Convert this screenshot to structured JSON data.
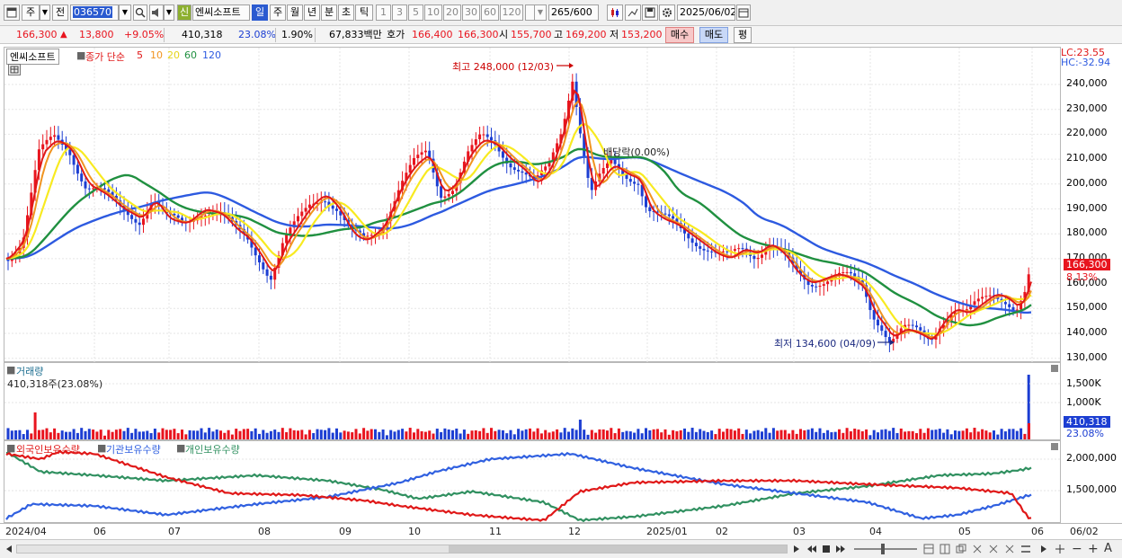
{
  "toolbar": {
    "period_day": "주",
    "prev_label": "전",
    "code": "036570",
    "new_badge": "신",
    "stock_name": "엔씨소프트",
    "periods": [
      "일",
      "주",
      "월",
      "년",
      "분",
      "초",
      "틱"
    ],
    "numbers": [
      "1",
      "3",
      "5",
      "10",
      "20",
      "30",
      "60",
      "120"
    ],
    "count": "265",
    "count_total": "/600",
    "date": "2025/06/02"
  },
  "quote": {
    "price": "166,300",
    "change": "13,800",
    "change_pct": "+9.05%",
    "volume": "410,318",
    "vol_ratio": "23.08%",
    "turnover_pct": "1.90%",
    "amount": "67,833백만",
    "bid_label": "호가",
    "bid1": "166,400",
    "bid2": "166,300",
    "open_label": "시",
    "open": "155,700",
    "high_label": "고",
    "high": "169,200",
    "low_label": "저",
    "low": "153,200",
    "buy": "매수",
    "sell": "매도",
    "eval": "평"
  },
  "price_panel": {
    "name": "엔씨소프트",
    "ma_label": "종가 단순",
    "ma_periods": [
      "5",
      "10",
      "20",
      "60",
      "120"
    ],
    "lc": "LC:23.55",
    "hc": "HC:-32.94",
    "current": "166,300",
    "current_pct": "8.13%",
    "high_note": "최고 248,000 (12/03)",
    "low_note": "최저 134,600 (04/09)",
    "dividend_note": "배당락(0.00%)",
    "y_ticks": [
      "240,000",
      "230,000",
      "220,000",
      "210,000",
      "200,000",
      "190,000",
      "180,000",
      "170,000",
      "160,000",
      "150,000",
      "140,000",
      "130,000"
    ]
  },
  "volume_panel": {
    "title": "거래량",
    "value": "410,318주(23.08%)",
    "y_ticks": [
      "1,500K",
      "1,000K"
    ],
    "current": "410,318",
    "current_pct": "23.08%"
  },
  "holdings_panel": {
    "legend": [
      "외국인보유수량",
      "기관보유수량",
      "개인보유수량"
    ],
    "y_ticks": [
      "2,000,000",
      "1,500,000"
    ]
  },
  "x_labels": [
    "2024/04",
    "06",
    "07",
    "08",
    "09",
    "10",
    "11",
    "12",
    "2025/01",
    "02",
    "03",
    "04",
    "05",
    "06",
    "06/02"
  ],
  "colors": {
    "up": "#e8141e",
    "down": "#1c3ed2",
    "ma5": "#e01818",
    "ma10": "#f09420",
    "ma20": "#f8ea20",
    "ma60": "#209040",
    "ma120": "#2d5ae0",
    "foreign": "#e01818",
    "inst": "#3060e0",
    "indiv": "#309060"
  },
  "chart_data": {
    "type": "candlestick",
    "ylim": [
      130000,
      250000
    ],
    "x_range": [
      "2024/04",
      "2025/06/02"
    ],
    "high": 248000,
    "low": 134600,
    "last": 166300
  }
}
